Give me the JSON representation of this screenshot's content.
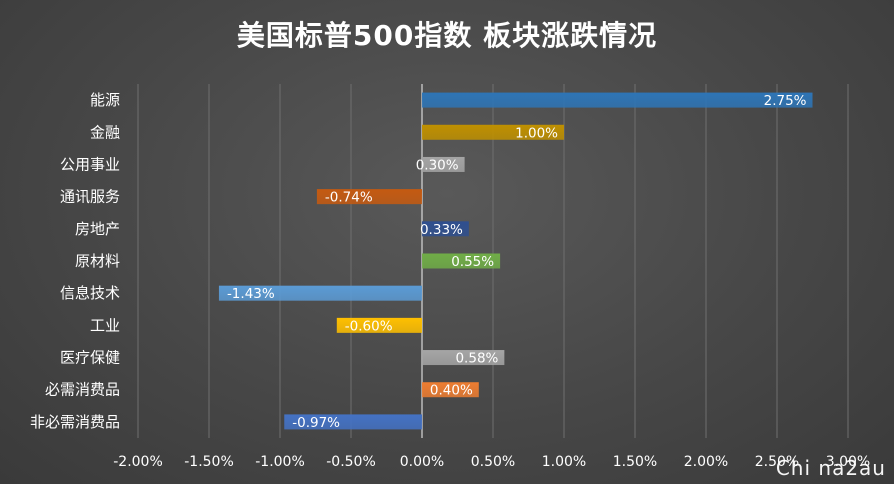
{
  "chart_data": {
    "type": "bar",
    "orientation": "horizontal",
    "title": "美国标普500指数 板块涨跌情况",
    "xlabel": "",
    "ylabel": "",
    "xlim": [
      -2.0,
      3.0
    ],
    "x_ticks": [
      "-2.00%",
      "-1.50%",
      "-1.00%",
      "-0.50%",
      "0.00%",
      "0.50%",
      "1.00%",
      "1.50%",
      "2.00%",
      "2.50%",
      "3.00%"
    ],
    "grid": true,
    "legend": "none",
    "categories": [
      "能源",
      "金融",
      "公用事业",
      "通讯服务",
      "房地产",
      "原材料",
      "信息技术",
      "工业",
      "医疗保健",
      "必需消费品",
      "非必需消费品"
    ],
    "values": [
      2.75,
      1.0,
      0.3,
      -0.74,
      0.33,
      0.55,
      -1.43,
      -0.6,
      0.58,
      0.4,
      -0.97
    ],
    "labels": [
      "2.75%",
      "1.00%",
      "0.30%",
      "-0.74%",
      "0.33%",
      "0.55%",
      "-1.43%",
      "-0.60%",
      "0.58%",
      "0.40%",
      "-0.97%"
    ],
    "colors": [
      "#2e75b6",
      "#bf9000",
      "#a5a5a5",
      "#c55a11",
      "#2f4f8f",
      "#70ad47",
      "#5b9bd5",
      "#ffc000",
      "#a5a5a5",
      "#ed7d31",
      "#4472c4"
    ]
  },
  "watermark": "Chi na2au"
}
